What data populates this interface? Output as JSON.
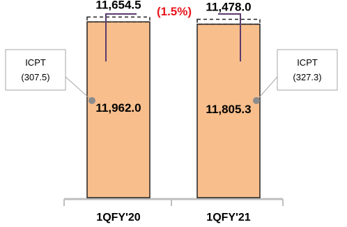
{
  "chart_data": {
    "type": "bar",
    "categories": [
      "1QFY'20",
      "1QFY'21"
    ],
    "series": [
      {
        "values": [
          11962.0,
          11805.3
        ]
      },
      {
        "values": [
          307.5,
          327.3
        ]
      }
    ],
    "value_labels": [
      "11,962.0",
      "11,805.3"
    ],
    "total_labels": [
      "11,654.5",
      "11,478.0"
    ],
    "callouts": [
      {
        "title": "ICPT",
        "value": "(307.5)"
      },
      {
        "title": "ICPT",
        "value": "(327.3)"
      }
    ],
    "change_label": "(1.5%)",
    "ylim": [
      0,
      12500
    ],
    "grid": false,
    "legend": "none",
    "colors": {
      "bar_fill": "#F8BE8C",
      "bar_stroke": "#222222",
      "bracket": "#5B3A6E",
      "change_text": "#E8141B",
      "callout_border": "#A6A6A6",
      "callout_dot": "#8C8C8C",
      "axis": "#BFBFBF"
    }
  }
}
